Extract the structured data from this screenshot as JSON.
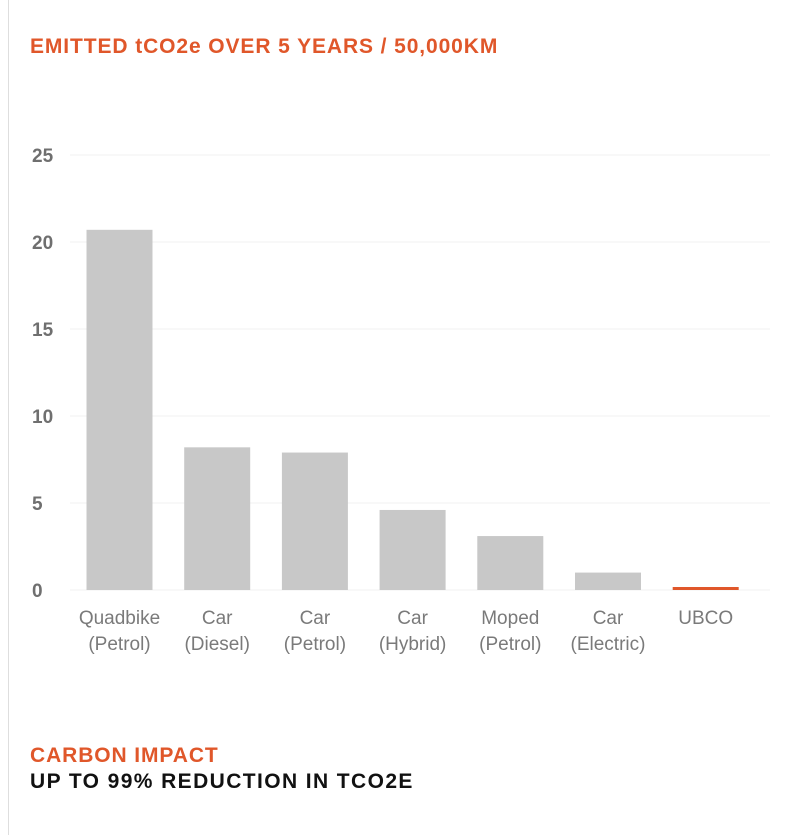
{
  "chart_data": {
    "type": "bar",
    "title": "EMITTED tCO2e OVER 5 YEARS / 50,000KM",
    "xlabel": "",
    "ylabel": "",
    "ylim": [
      0,
      25
    ],
    "yticks": [
      "0",
      "5",
      "10",
      "15",
      "20",
      "25"
    ],
    "categories": [
      [
        "Quadbike",
        "(Petrol)"
      ],
      [
        "Car",
        "(Diesel)"
      ],
      [
        "Car",
        "(Petrol)"
      ],
      [
        "Car",
        "(Hybrid)"
      ],
      [
        "Moped",
        "(Petrol)"
      ],
      [
        "Car",
        "(Electric)"
      ],
      [
        "UBCO"
      ]
    ],
    "values": [
      20.7,
      8.2,
      7.9,
      4.6,
      3.1,
      1.0,
      0.15
    ],
    "highlight_index": 6,
    "grid": true
  },
  "colors": {
    "bar": "#c8c8c8",
    "highlight": "#e0572a",
    "accent": "#e0572a",
    "grid": "#f0f0f0"
  },
  "footer": {
    "title": "CARBON IMPACT",
    "subtitle": "UP TO 99% REDUCTION IN TCO2E"
  }
}
